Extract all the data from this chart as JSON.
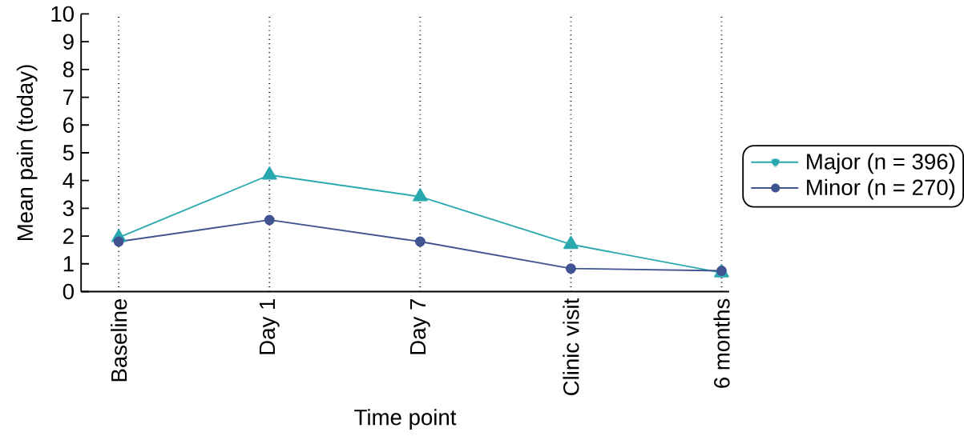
{
  "chart_data": {
    "type": "line",
    "xlabel": "Time point",
    "ylabel": "Mean pain (today)",
    "categories": [
      "Baseline",
      "Day 1",
      "Day 7",
      "Clinic visit",
      "6 months"
    ],
    "series": [
      {
        "name": "Major (n = 396)",
        "color": "#2aa9b0",
        "marker": "triangle",
        "values": [
          1.95,
          4.2,
          3.42,
          1.7,
          0.68
        ]
      },
      {
        "name": "Minor (n = 270)",
        "color": "#3f5490",
        "marker": "circle",
        "values": [
          1.8,
          2.58,
          1.8,
          0.83,
          0.75
        ]
      }
    ],
    "ylim": [
      0,
      10
    ],
    "yticks": [
      0,
      1,
      2,
      3,
      4,
      5,
      6,
      7,
      8,
      9,
      10
    ],
    "grid": "x",
    "legend": "right",
    "line_style": "solid"
  }
}
